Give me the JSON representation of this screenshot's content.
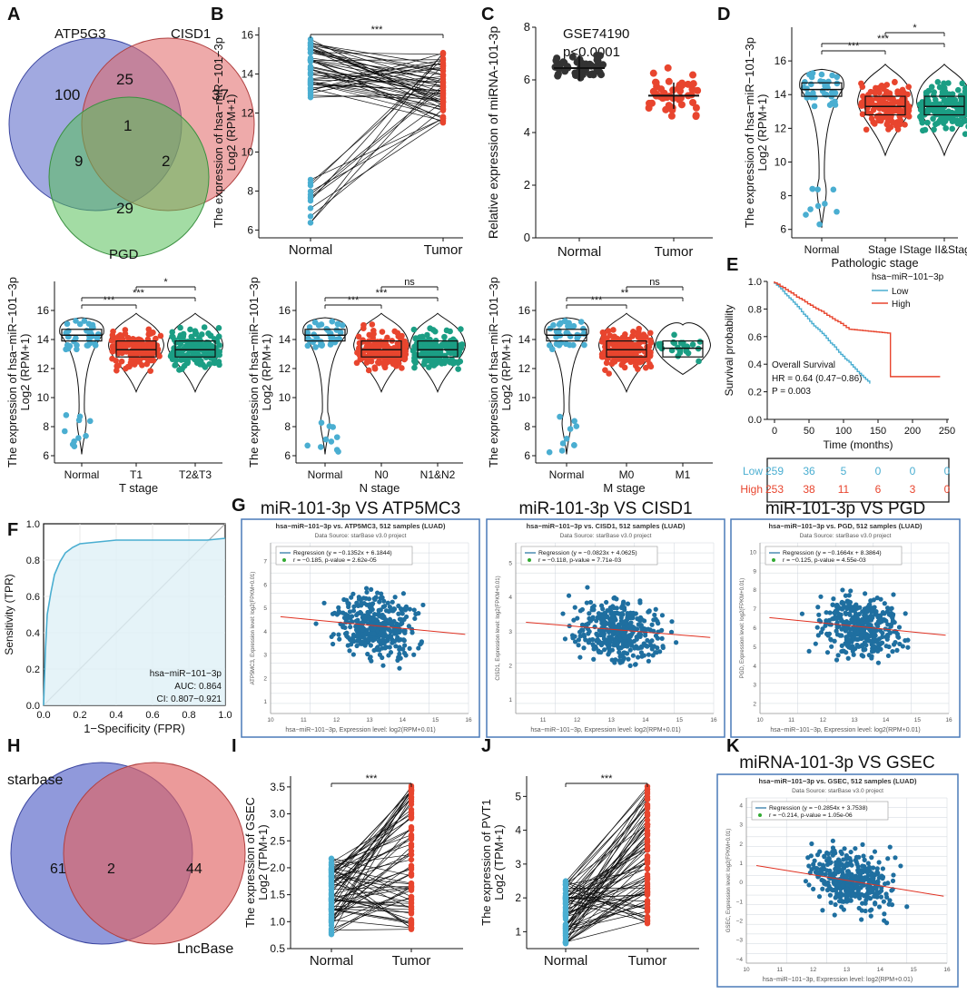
{
  "panel_labels": [
    "A",
    "B",
    "C",
    "D",
    "E",
    "F",
    "G",
    "H",
    "I",
    "J",
    "K"
  ],
  "colors": {
    "blue": "#4aaed1",
    "red": "#e8452e",
    "teal": "#1b9e84",
    "black": "#333333",
    "venn_blue": "#5463c7",
    "venn_red": "#e06464",
    "venn_green": "#58c05a",
    "sb_blue": "#1f6fa0",
    "sb_red": "#e03020",
    "km_low": "#4aaed1",
    "km_high": "#e8452e"
  },
  "chart_data": [
    {
      "id": "A",
      "type": "venn",
      "sets": [
        "ATP5G3",
        "CISD1",
        "PGD"
      ],
      "regions": {
        "only_a": "100",
        "only_b": "37",
        "only_c": "29",
        "ab": "25",
        "ac": "9",
        "bc": "2",
        "abc": "1"
      }
    },
    {
      "id": "B",
      "type": "paired",
      "ylabel1": "The expression of hsa−miR−101−3p",
      "ylabel2": "Log2 (RPM+1)",
      "categories": [
        "Normal",
        "Tumor"
      ],
      "yticks": [
        "6",
        "8",
        "10",
        "12",
        "14",
        "16"
      ],
      "ylim": [
        5.6,
        16.4
      ],
      "sig": "***"
    },
    {
      "id": "C",
      "type": "scatter",
      "title": "GSE74190",
      "pvalue": "p<0.0001",
      "ylabel": "Relative expression of miRNA-101-3p",
      "categories": [
        "Normal",
        "Tumor"
      ],
      "yticks": [
        "0",
        "2",
        "4",
        "6",
        "8"
      ],
      "ylim": [
        0,
        8
      ],
      "means": [
        6.45,
        5.4
      ]
    },
    {
      "id": "D",
      "type": "violin",
      "ylabel1": "The expression of hsa−miR−101−3p",
      "ylabel2": "Log2 (RPM+1)",
      "xlabel": "Pathologic stage",
      "categories": [
        "Normal",
        "Stage I",
        "Stage II&Stage II"
      ],
      "yticks": [
        "6",
        "8",
        "10",
        "12",
        "14",
        "16"
      ],
      "ylim": [
        5.5,
        18
      ],
      "sig": [
        "***",
        "***",
        "*"
      ]
    },
    {
      "id": "T",
      "type": "violin",
      "ylabel1": "The expression of hsa−miR−101−3p",
      "ylabel2": "Log2 (RPM+1)",
      "xlabel": "T stage",
      "categories": [
        "Normal",
        "T1",
        "T2&T3"
      ],
      "yticks": [
        "6",
        "8",
        "10",
        "12",
        "14",
        "16"
      ],
      "ylim": [
        5.5,
        18
      ],
      "sig": [
        "***",
        "***",
        "*"
      ]
    },
    {
      "id": "N",
      "type": "violin",
      "ylabel1": "The expression of hsa−miR−101−3p",
      "ylabel2": "Log2 (RPM+1)",
      "xlabel": "N stage",
      "categories": [
        "Normal",
        "N0",
        "N1&N2"
      ],
      "yticks": [
        "6",
        "8",
        "10",
        "12",
        "14",
        "16"
      ],
      "ylim": [
        5.5,
        18
      ],
      "sig": [
        "***",
        "***",
        "ns"
      ]
    },
    {
      "id": "M",
      "type": "violin",
      "ylabel1": "The expression of hsa−miR−101−3p",
      "ylabel2": "Log2 (RPM+1)",
      "xlabel": "M stage",
      "categories": [
        "Normal",
        "M0",
        "M1"
      ],
      "yticks": [
        "6",
        "8",
        "10",
        "12",
        "14",
        "16"
      ],
      "ylim": [
        5.5,
        18
      ],
      "sig": [
        "***",
        "**",
        "ns"
      ]
    },
    {
      "id": "E",
      "type": "line",
      "title": "hsa−miR−101−3p",
      "legend": [
        "Low",
        "High"
      ],
      "ylabel": "Survival probability",
      "xlabel": "Time (months)",
      "xticks": [
        "0",
        "50",
        "100",
        "150",
        "200",
        "250"
      ],
      "yticks": [
        "0.0",
        "0.2",
        "0.4",
        "0.6",
        "0.8",
        "1.0"
      ],
      "annot": [
        "Overall Survival",
        "HR = 0.64 (0.47−0.86)",
        "P = 0.003"
      ],
      "risk_table": {
        "rows": [
          {
            "name": "Low",
            "values": [
              "259",
              "36",
              "5",
              "0",
              "0",
              "0"
            ]
          },
          {
            "name": "High",
            "values": [
              "253",
              "38",
              "11",
              "6",
              "3",
              "0"
            ]
          }
        ]
      }
    },
    {
      "id": "F",
      "type": "line",
      "ylabel": "Sensitivity (TPR)",
      "xlabel": "1−Specificity (FPR)",
      "ticks": [
        "0.0",
        "0.2",
        "0.4",
        "0.6",
        "0.8",
        "1.0"
      ],
      "legend": [
        "hsa−miR−101−3p",
        "AUC: 0.864",
        "CI: 0.807−0.921"
      ]
    },
    {
      "id": "G1",
      "type": "scatter",
      "title": "miR-101-3p VS ATP5MC3",
      "inner_title": "hsa−miR−101−3p vs. ATP5MC3, 512 samples (LUAD)",
      "source": "Data Source: starBase v3.0 project",
      "reg": "Regression (y = −0.1352x + 6.1844)",
      "stat": "r = −0.185, p-value = 2.62e-05",
      "ylabel": "ATP5MC3, Expression level: log2(FPKM+0.01)",
      "xlabel": "hsa−miR−101−3p, Expression level: log2(RPM+0.01)",
      "xticks": [
        "10",
        "11",
        "12",
        "13",
        "14",
        "15",
        "16"
      ],
      "yticks": [
        "1",
        "2",
        "3",
        "4",
        "5",
        "6",
        "7"
      ],
      "xlim": [
        10,
        16
      ],
      "ylim": [
        0.5,
        7.8
      ],
      "slope": -0.1352,
      "intercept": 6.1844
    },
    {
      "id": "G2",
      "type": "scatter",
      "title": "miR-101-3p VS CISD1",
      "inner_title": "hsa−miR−101−3p vs. CISD1, 512 samples (LUAD)",
      "source": "Data Source: starBase v3.0 project",
      "reg": "Regression (y = −0.0823x + 4.0625)",
      "stat": "r = −0.118, p-value = 7.71e-03",
      "ylabel": "CISD1, Expression level: log2(FPKM+0.01)",
      "xlabel": "hsa−miR−101−3p, Expression level: log2(RPM+0.01)",
      "xticks": [
        "11",
        "12",
        "13",
        "14",
        "15",
        "16"
      ],
      "yticks": [
        "1",
        "2",
        "3",
        "4",
        "5"
      ],
      "xlim": [
        10.2,
        16
      ],
      "ylim": [
        0.6,
        5.6
      ],
      "slope": -0.0823,
      "intercept": 4.0625
    },
    {
      "id": "G3",
      "type": "scatter",
      "title": "miR-101-3p VS PGD",
      "inner_title": "hsa−miR−101−3p vs. PGD, 512 samples (LUAD)",
      "source": "Data Source: starBase v3.0 project",
      "reg": "Regression (y = −0.1664x + 8.3864)",
      "stat": "r = −0.125, p-value = 4.55e-03",
      "ylabel": "PGD, Expression level: log2(FPKM+0.01)",
      "xlabel": "hsa−miR−101−3p, Expression level: log2(RPM+0.01)",
      "xticks": [
        "10",
        "11",
        "12",
        "13",
        "14",
        "15",
        "16"
      ],
      "yticks": [
        "2",
        "3",
        "4",
        "5",
        "6",
        "7",
        "8",
        "9",
        "10"
      ],
      "xlim": [
        10,
        16
      ],
      "ylim": [
        1.5,
        10.5
      ],
      "slope": -0.1664,
      "intercept": 8.3864
    },
    {
      "id": "H",
      "type": "venn",
      "sets": [
        "starbase",
        "LncBase"
      ],
      "regions": {
        "only_a": "61",
        "ab": "2",
        "only_b": "44"
      }
    },
    {
      "id": "I",
      "type": "paired",
      "ylabel1": "The expression of GSEC",
      "ylabel2": "Log2 (TPM+1)",
      "categories": [
        "Normal",
        "Tumor"
      ],
      "yticks": [
        "0.5",
        "1.0",
        "1.5",
        "2.0",
        "2.5",
        "3.0",
        "3.5"
      ],
      "ylim": [
        0.5,
        3.7
      ],
      "sig": "***"
    },
    {
      "id": "J",
      "type": "paired",
      "ylabel1": "The expression of PVT1",
      "ylabel2": "Log2 (TPM+1)",
      "categories": [
        "Normal",
        "Tumor"
      ],
      "yticks": [
        "1",
        "2",
        "3",
        "4",
        "5"
      ],
      "ylim": [
        0.5,
        5.6
      ],
      "sig": "***"
    },
    {
      "id": "K",
      "type": "scatter",
      "title": "miRNA-101-3p VS GSEC",
      "inner_title": "hsa−miR−101−3p vs. GSEC, 512 samples (LUAD)",
      "source": "Data Source: starBase v3.0 project",
      "reg": "Regression (y = −0.2854x + 3.7538)",
      "stat": "r = −0.214, p-value = 1.05e-06",
      "ylabel": "GSEC, Expression level: log2(FPKM+0.01)",
      "xlabel": "hsa−miR−101−3p, Expression level: log2(RPM+0.01)",
      "xticks": [
        "10",
        "11",
        "12",
        "13",
        "14",
        "15",
        "16"
      ],
      "yticks": [
        "−4",
        "−3",
        "−2",
        "−1",
        "0",
        "1",
        "2",
        "3",
        "4"
      ],
      "xlim": [
        10,
        16
      ],
      "ylim": [
        -4.2,
        4.4
      ],
      "slope": -0.2854,
      "intercept": 3.7538
    }
  ]
}
